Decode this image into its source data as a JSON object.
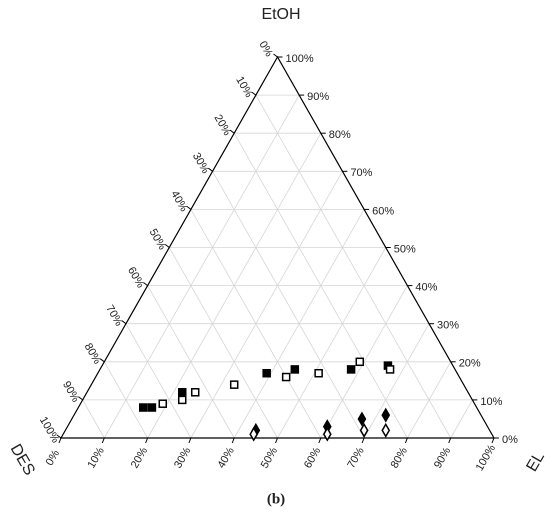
{
  "chart_data": {
    "type": "ternary",
    "caption": "(b)",
    "axes": {
      "EtOH": {
        "label": "EtOH",
        "ticks": [
          {
            "value": 0,
            "label": "0%"
          },
          {
            "value": 10,
            "label": "10%"
          },
          {
            "value": 20,
            "label": "20%"
          },
          {
            "value": 30,
            "label": "30%"
          },
          {
            "value": 40,
            "label": "40%"
          },
          {
            "value": 50,
            "label": "50%"
          },
          {
            "value": 60,
            "label": "60%"
          },
          {
            "value": 70,
            "label": "70%"
          },
          {
            "value": 80,
            "label": "80%"
          },
          {
            "value": 90,
            "label": "90%"
          },
          {
            "value": 100,
            "label": "100%"
          }
        ]
      },
      "DES": {
        "label": "DES",
        "ticks": [
          {
            "value": 0,
            "label": "0%"
          },
          {
            "value": 10,
            "label": "10%"
          },
          {
            "value": 20,
            "label": "20%"
          },
          {
            "value": 30,
            "label": "30%"
          },
          {
            "value": 40,
            "label": "40%"
          },
          {
            "value": 50,
            "label": "50%"
          },
          {
            "value": 60,
            "label": "60%"
          },
          {
            "value": 70,
            "label": "70%"
          },
          {
            "value": 80,
            "label": "80%"
          },
          {
            "value": 90,
            "label": "90%"
          },
          {
            "value": 100,
            "label": "100%"
          }
        ]
      },
      "EL": {
        "label": "EL",
        "ticks": [
          {
            "value": 0,
            "label": "0%"
          },
          {
            "value": 10,
            "label": "10%"
          },
          {
            "value": 20,
            "label": "20%"
          },
          {
            "value": 30,
            "label": "30%"
          },
          {
            "value": 40,
            "label": "40%"
          },
          {
            "value": 50,
            "label": "50%"
          },
          {
            "value": 60,
            "label": "60%"
          },
          {
            "value": 70,
            "label": "70%"
          },
          {
            "value": 80,
            "label": "80%"
          },
          {
            "value": 90,
            "label": "90%"
          },
          {
            "value": 100,
            "label": "100%"
          }
        ]
      }
    },
    "grid": true,
    "series": [
      {
        "marker": "square",
        "filled": true,
        "color": "#000000",
        "EtOH": [
          8,
          8,
          12,
          17,
          18,
          18,
          19
        ],
        "EL": [
          15,
          17,
          22,
          39,
          45,
          58,
          66
        ],
        "DES": [
          77,
          75,
          66,
          44,
          37,
          24,
          15
        ]
      },
      {
        "marker": "square",
        "filled": false,
        "color": "#000000",
        "EtOH": [
          9,
          10,
          12,
          14,
          16,
          17,
          20,
          18
        ],
        "EL": [
          19,
          23,
          25,
          33,
          44,
          51,
          59,
          67
        ],
        "DES": [
          72,
          67,
          63,
          53,
          40,
          32,
          21,
          15
        ]
      },
      {
        "marker": "diamond",
        "filled": true,
        "color": "#000000",
        "EtOH": [
          2,
          3,
          5,
          6
        ],
        "EL": [
          44,
          60,
          67,
          72
        ],
        "DES": [
          54,
          37,
          28,
          22
        ]
      },
      {
        "marker": "diamond",
        "filled": false,
        "color": "#000000",
        "EtOH": [
          1,
          1,
          2,
          2
        ],
        "EL": [
          44,
          61,
          69,
          74
        ],
        "DES": [
          55,
          38,
          29,
          24
        ]
      }
    ]
  }
}
